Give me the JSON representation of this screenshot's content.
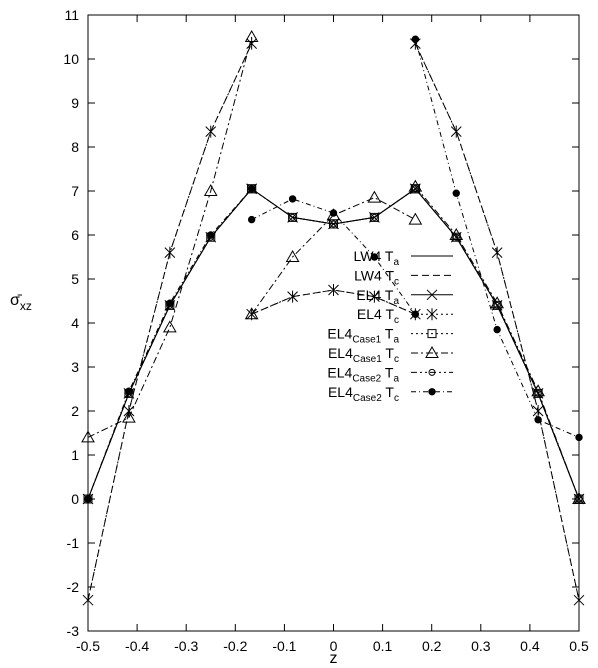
{
  "chart_data": {
    "type": "line",
    "xlabel": "z",
    "ylabel": "σ̄xz",
    "xlim": [
      -0.5,
      0.5
    ],
    "ylim": [
      -3,
      11
    ],
    "xticks": [
      "-0.5",
      "-0.4",
      "-0.3",
      "-0.2",
      "-0.1",
      "0",
      "0.1",
      "0.2",
      "0.3",
      "0.4",
      "0.5"
    ],
    "yticks": [
      "-3",
      "-2",
      "-1",
      "0",
      "1",
      "2",
      "3",
      "4",
      "5",
      "6",
      "7",
      "8",
      "9",
      "10",
      "11"
    ],
    "legend_position": "center",
    "grid": false,
    "series": [
      {
        "name": "LW4 Ta",
        "base": "LW4 T",
        "sub": "",
        "tsub": "a",
        "style": "solid",
        "marker": "none",
        "segments": [
          {
            "x": [
              -0.1667,
              -0.0833,
              0,
              0.0833,
              0.1667
            ],
            "y": [
              7.05,
              6.4,
              6.25,
              6.4,
              7.05
            ]
          },
          {
            "x": [
              -0.5,
              -0.4167,
              -0.3333,
              -0.25,
              -0.1667
            ],
            "y": [
              0,
              2.4,
              4.4,
              5.95,
              7.05
            ]
          },
          {
            "x": [
              0.1667,
              0.25,
              0.3333,
              0.4167,
              0.5
            ],
            "y": [
              7.05,
              5.95,
              4.4,
              2.4,
              0
            ]
          }
        ]
      },
      {
        "name": "LW4 Tc",
        "base": "LW4 T",
        "sub": "",
        "tsub": "c",
        "style": "dashed",
        "marker": "none",
        "segments": [
          {
            "x": [
              -0.1667,
              -0.0833,
              0,
              0.0833,
              0.1667
            ],
            "y": [
              4.2,
              4.6,
              4.75,
              4.6,
              4.2
            ]
          },
          {
            "x": [
              -0.5,
              -0.4167,
              -0.3333,
              -0.25,
              -0.1667
            ],
            "y": [
              -2.3,
              2.0,
              5.6,
              8.35,
              10.35
            ]
          },
          {
            "x": [
              0.1667,
              0.25,
              0.3333,
              0.4167,
              0.5
            ],
            "y": [
              10.35,
              8.35,
              5.6,
              2.0,
              -2.3
            ]
          }
        ]
      },
      {
        "name": "EL4 Ta",
        "base": "EL4 T",
        "sub": "",
        "tsub": "a",
        "style": "solid",
        "marker": "x",
        "segments": [
          {
            "x": [
              -0.1667,
              -0.0833,
              0,
              0.0833,
              0.1667
            ],
            "y": [
              7.05,
              6.4,
              6.25,
              6.4,
              7.05
            ]
          },
          {
            "x": [
              -0.5,
              -0.4167,
              -0.3333,
              -0.25,
              -0.1667
            ],
            "y": [
              0,
              2.4,
              4.4,
              5.95,
              7.05
            ]
          },
          {
            "x": [
              0.1667,
              0.25,
              0.3333,
              0.4167,
              0.5
            ],
            "y": [
              7.05,
              5.95,
              4.4,
              2.4,
              0
            ]
          }
        ]
      },
      {
        "name": "EL4 Tc",
        "base": "EL4 T",
        "sub": "",
        "tsub": "c",
        "style": "dotted",
        "marker": "star",
        "segments": [
          {
            "x": [
              -0.1667,
              -0.0833,
              0,
              0.0833,
              0.1667
            ],
            "y": [
              4.2,
              4.6,
              4.75,
              4.6,
              4.2
            ]
          },
          {
            "x": [
              -0.5,
              -0.4167,
              -0.3333,
              -0.25,
              -0.1667
            ],
            "y": [
              -2.3,
              2.0,
              5.6,
              8.35,
              10.35
            ]
          },
          {
            "x": [
              0.1667,
              0.25,
              0.3333,
              0.4167,
              0.5
            ],
            "y": [
              10.35,
              8.35,
              5.6,
              2.0,
              -2.3
            ]
          }
        ]
      },
      {
        "name": "EL4Case1 Ta",
        "base": "EL4",
        "sub": "Case1",
        "tsub": "a",
        "style": "dotted",
        "marker": "square",
        "segments": [
          {
            "x": [
              -0.1667,
              -0.0833,
              0,
              0.0833,
              0.1667
            ],
            "y": [
              7.05,
              6.4,
              6.25,
              6.4,
              7.05
            ]
          },
          {
            "x": [
              -0.5,
              -0.4167,
              -0.3333,
              -0.25,
              -0.1667
            ],
            "y": [
              0,
              2.4,
              4.4,
              5.95,
              7.05
            ]
          },
          {
            "x": [
              0.1667,
              0.25,
              0.3333,
              0.4167,
              0.5
            ],
            "y": [
              7.05,
              5.95,
              4.4,
              2.4,
              0
            ]
          }
        ]
      },
      {
        "name": "EL4Case1 Tc",
        "base": "EL4",
        "sub": "Case1",
        "tsub": "c",
        "style": "dashdot",
        "marker": "triangle",
        "segments": [
          {
            "x": [
              -0.5,
              -0.4167,
              -0.3333,
              -0.25,
              -0.1667
            ],
            "y": [
              1.4,
              1.85,
              3.9,
              7.0,
              10.5
            ]
          },
          {
            "x": [
              -0.1667,
              -0.0833,
              0,
              0.0833,
              0.1667
            ],
            "y": [
              4.2,
              5.5,
              6.45,
              6.85,
              6.35
            ]
          },
          {
            "x": [
              0.1667,
              0.25,
              0.3333,
              0.4167,
              0.5
            ],
            "y": [
              7.1,
              6.0,
              4.45,
              2.45,
              0
            ]
          }
        ]
      },
      {
        "name": "EL4Case2 Ta",
        "base": "EL4",
        "sub": "Case2",
        "tsub": "a",
        "style": "dashdotdot",
        "marker": "circle",
        "segments": [
          {
            "x": [
              -0.1667,
              -0.0833,
              0,
              0.0833,
              0.1667
            ],
            "y": [
              7.05,
              6.4,
              6.25,
              6.4,
              7.05
            ]
          },
          {
            "x": [
              -0.5,
              -0.4167,
              -0.3333,
              -0.25,
              -0.1667
            ],
            "y": [
              0,
              2.4,
              4.4,
              5.95,
              7.05
            ]
          },
          {
            "x": [
              0.1667,
              0.25,
              0.3333,
              0.4167,
              0.5
            ],
            "y": [
              7.05,
              5.95,
              4.4,
              2.4,
              0
            ]
          }
        ]
      },
      {
        "name": "EL4Case2 Tc",
        "base": "EL4",
        "sub": "Case2",
        "tsub": "c",
        "style": "dashdot2",
        "marker": "dot",
        "segments": [
          {
            "x": [
              -0.5,
              -0.4167,
              -0.3333,
              -0.25,
              -0.1667
            ],
            "y": [
              0,
              2.45,
              4.45,
              6.0,
              7.05
            ]
          },
          {
            "x": [
              -0.1667,
              -0.0833,
              0,
              0.0833,
              0.1667
            ],
            "y": [
              6.35,
              6.82,
              6.5,
              5.5,
              4.2
            ]
          },
          {
            "x": [
              0.1667,
              0.25,
              0.3333,
              0.4167,
              0.5
            ],
            "y": [
              10.45,
              6.95,
              3.85,
              1.8,
              1.4
            ]
          }
        ]
      }
    ]
  }
}
